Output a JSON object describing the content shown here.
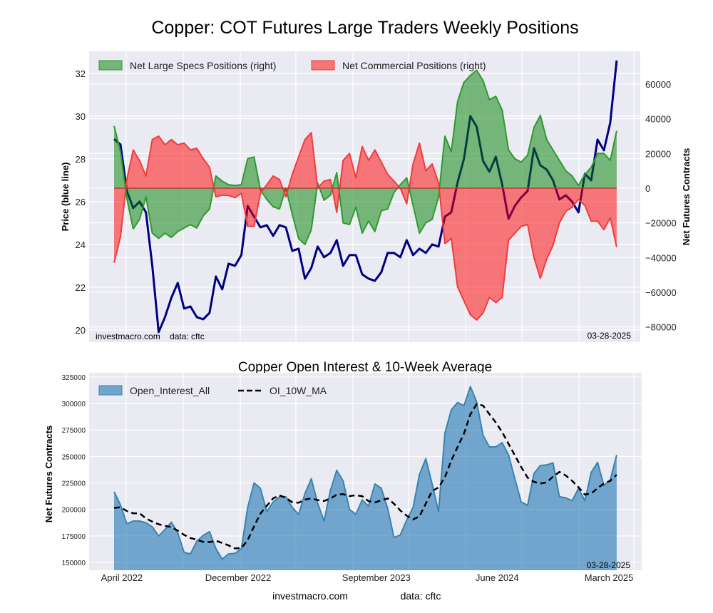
{
  "chart_data": [
    {
      "type": "line+area",
      "title": "Copper: COT Futures Large Traders Weekly Positions",
      "ylabel_left": "Price (blue line)",
      "ylabel_right": "Net Futures Contracts",
      "ylim_left": [
        19.43,
        33.03
      ],
      "ylim_right": [
        -88800,
        78900
      ],
      "xlim": [
        "2022-01-19",
        "2025-05-16"
      ],
      "yticks_left": [
        20,
        22,
        24,
        26,
        28,
        30,
        32
      ],
      "yticks_right": [
        -80000,
        -60000,
        -40000,
        -20000,
        0,
        20000,
        40000,
        60000
      ],
      "grid": true,
      "legend": "top-left",
      "annotation_left": "investmacro.com    data: cftc",
      "annotation_right": "03-28-2025",
      "dates": [
        "2022-03-15",
        "2022-03-29",
        "2022-04-12",
        "2022-04-26",
        "2022-05-10",
        "2022-05-24",
        "2022-06-07",
        "2022-06-21",
        "2022-07-05",
        "2022-07-19",
        "2022-08-02",
        "2022-08-16",
        "2022-08-30",
        "2022-09-13",
        "2022-09-27",
        "2022-10-11",
        "2022-10-25",
        "2022-11-08",
        "2022-11-22",
        "2022-12-06",
        "2022-12-20",
        "2023-01-03",
        "2023-01-17",
        "2023-01-31",
        "2023-02-14",
        "2023-02-28",
        "2023-03-14",
        "2023-03-28",
        "2023-04-11",
        "2023-04-25",
        "2023-05-09",
        "2023-05-23",
        "2023-06-06",
        "2023-06-20",
        "2023-07-04",
        "2023-07-18",
        "2023-08-01",
        "2023-08-15",
        "2023-08-29",
        "2023-09-12",
        "2023-09-26",
        "2023-10-10",
        "2023-10-24",
        "2023-11-07",
        "2023-11-21",
        "2023-12-05",
        "2023-12-19",
        "2024-01-02",
        "2024-01-16",
        "2024-01-30",
        "2024-02-13",
        "2024-02-27",
        "2024-03-12",
        "2024-03-26",
        "2024-04-09",
        "2024-04-23",
        "2024-05-07",
        "2024-05-21",
        "2024-06-04",
        "2024-06-18",
        "2024-07-02",
        "2024-07-16",
        "2024-07-30",
        "2024-08-13",
        "2024-08-27",
        "2024-09-10",
        "2024-09-24",
        "2024-10-08",
        "2024-10-22",
        "2024-11-05",
        "2024-11-19",
        "2024-12-03",
        "2024-12-17",
        "2024-12-31",
        "2025-01-14",
        "2025-01-28",
        "2025-02-11",
        "2025-02-25",
        "2025-03-11",
        "2025-03-25"
      ],
      "price": {
        "axis": "left",
        "color": "#000080",
        "values": [
          28.93,
          28.67,
          26.5,
          25.7,
          26.0,
          25.5,
          23.0,
          19.9,
          20.6,
          21.5,
          22.2,
          21.0,
          21.1,
          20.6,
          20.5,
          20.8,
          22.5,
          21.9,
          23.1,
          23.0,
          23.5,
          25.8,
          25.3,
          24.8,
          24.9,
          24.4,
          24.9,
          24.8,
          23.7,
          23.8,
          22.4,
          22.9,
          23.9,
          23.4,
          23.6,
          24.2,
          23.0,
          23.5,
          23.5,
          22.6,
          22.4,
          22.3,
          22.7,
          23.6,
          23.6,
          23.4,
          24.2,
          23.5,
          23.8,
          23.6,
          24.0,
          23.9,
          25.3,
          25.5,
          26.9,
          28.0,
          30.0,
          29.5,
          27.9,
          27.4,
          28.1,
          26.8,
          25.2,
          25.8,
          26.2,
          26.5,
          28.5,
          27.7,
          27.5,
          27.0,
          26.1,
          26.3,
          26.0,
          25.5,
          27.3,
          27.0,
          28.9,
          28.4,
          29.7,
          32.6
        ]
      },
      "series": [
        {
          "name": "Net Large Specs Positions (right)",
          "type": "area",
          "axis": "right",
          "color": "#008000",
          "values": [
            35900,
            21000,
            -6000,
            -23500,
            -18000,
            -5000,
            -26000,
            -29000,
            -26000,
            -28400,
            -25000,
            -23000,
            -21000,
            -23000,
            -16000,
            -12000,
            7000,
            4000,
            2000,
            1500,
            2000,
            17000,
            18000,
            -1000,
            -6500,
            -10700,
            -12000,
            0,
            -15000,
            -29000,
            -32500,
            -24000,
            3000,
            -7000,
            -4000,
            9000,
            -20000,
            -21000,
            -11000,
            -26000,
            -19000,
            -25000,
            -13000,
            -12000,
            -2500,
            2000,
            6000,
            -10000,
            -26000,
            -20000,
            -18000,
            -5000,
            30000,
            21000,
            50000,
            61000,
            65000,
            68000,
            62000,
            51000,
            53000,
            45000,
            22000,
            17000,
            15000,
            19000,
            35000,
            42000,
            28000,
            22000,
            16000,
            10000,
            7000,
            1500,
            8000,
            12000,
            20000,
            20000,
            16000,
            33000
          ]
        },
        {
          "name": "Net Commercial Positions (right)",
          "type": "area",
          "axis": "right",
          "color": "#ff0000",
          "values": [
            -43000,
            -28000,
            5000,
            22000,
            16000,
            7000,
            28000,
            30000,
            25000,
            28000,
            25000,
            26000,
            22000,
            23000,
            17000,
            12000,
            -5000,
            -4000,
            -4200,
            -5500,
            -3000,
            -22000,
            -22000,
            -3000,
            2000,
            7000,
            5000,
            -5000,
            8000,
            18000,
            28000,
            32000,
            0,
            4000,
            5000,
            -14000,
            16000,
            20000,
            6000,
            24000,
            16000,
            22000,
            15000,
            8000,
            4000,
            0,
            -9000,
            14000,
            26000,
            10000,
            14000,
            3000,
            -32000,
            -29000,
            -57000,
            -65000,
            -73000,
            -76000,
            -72000,
            -63000,
            -66000,
            -63000,
            -30000,
            -26000,
            -22000,
            -21000,
            -40000,
            -52000,
            -41000,
            -33000,
            -20000,
            -13400,
            -11000,
            -6500,
            -10000,
            -19000,
            -19000,
            -24000,
            -17000,
            -34000
          ]
        }
      ]
    },
    {
      "type": "area+line",
      "title": "Copper Open Interest & 10-Week Average",
      "ylabel": "Net Futures Contracts",
      "ylim": [
        142600,
        329000
      ],
      "xlim": [
        "2022-01-19",
        "2025-05-16"
      ],
      "yticks": [
        150000,
        175000,
        200000,
        225000,
        250000,
        275000,
        300000,
        325000
      ],
      "xticks": [
        {
          "date": "2022-04-01",
          "label": "April 2022"
        },
        {
          "date": "2022-12-13",
          "label": "December 2022"
        },
        {
          "date": "2023-10-13",
          "label": "September 2023"
        },
        {
          "date": "2024-07-05",
          "label": "June 2024"
        },
        {
          "date": "2025-03-08",
          "label": "March 2025"
        }
      ],
      "grid": true,
      "legend": "top-left",
      "annotation_right": "03-28-2025",
      "series": [
        {
          "name": "Open_Interest_All",
          "type": "area",
          "color": "#1f77b4",
          "values": [
            216700,
            204300,
            186500,
            189000,
            189000,
            187500,
            183500,
            175000,
            181000,
            188000,
            178000,
            159500,
            158000,
            170000,
            175500,
            179000,
            163000,
            153000,
            158000,
            158500,
            163000,
            202000,
            225000,
            220000,
            198000,
            207000,
            212000,
            212000,
            202000,
            195300,
            215000,
            229000,
            206000,
            189000,
            218000,
            237000,
            227000,
            200000,
            195500,
            209000,
            203000,
            224000,
            220000,
            201000,
            173500,
            176000,
            190000,
            202000,
            233000,
            248000,
            224000,
            198000,
            272000,
            294000,
            301000,
            298000,
            316000,
            301500,
            270000,
            259000,
            259000,
            263000,
            251600,
            229000,
            207000,
            204000,
            234000,
            241500,
            242000,
            244000,
            212000,
            211000,
            208300,
            219700,
            208300,
            235000,
            244400,
            222500,
            228000,
            251500
          ]
        },
        {
          "name": "OI_10W_MA",
          "type": "line",
          "style": "dashed",
          "color": "#000000",
          "values": [
            201400,
            202000,
            198500,
            196400,
            196400,
            191500,
            188400,
            186000,
            184500,
            183300,
            180000,
            176000,
            173000,
            171500,
            169300,
            169100,
            170400,
            168400,
            166000,
            163200,
            163500,
            171000,
            184000,
            196000,
            203500,
            210500,
            213300,
            211000,
            206800,
            206300,
            209300,
            210400,
            208800,
            208000,
            210200,
            214000,
            214400,
            212600,
            213400,
            212500,
            207800,
            206600,
            208600,
            210400,
            205300,
            199000,
            194000,
            190600,
            193500,
            205500,
            217500,
            220700,
            230500,
            246000,
            259000,
            271500,
            289800,
            299500,
            298000,
            290000,
            282000,
            273000,
            262000,
            251000,
            240000,
            230000,
            226000,
            224500,
            225500,
            231000,
            235400,
            232000,
            227000,
            221000,
            214000,
            215000,
            220000,
            224500,
            227000,
            232700
          ]
        }
      ]
    }
  ],
  "footer": {
    "site": "investmacro.com",
    "source": "data: cftc"
  }
}
